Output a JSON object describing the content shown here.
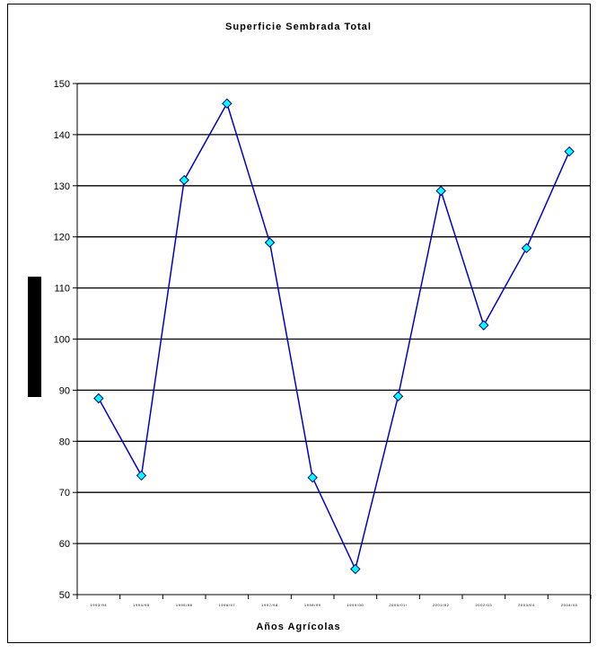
{
  "chart_data": {
    "type": "line",
    "title": "Superficie Sembrada Total",
    "xlabel": "Años Agrícolas",
    "ylabel": "",
    "categories": [
      "1993/94",
      "1994/95",
      "1995/96",
      "1996/97",
      "1997/98",
      "1998/99",
      "1999/00",
      "2000/01\\",
      "2001/02",
      "2002/03",
      "2003/04",
      "2004/05"
    ],
    "series": [
      {
        "values": [
          88.4,
          73.3,
          131.1,
          146.1,
          118.9,
          72.9,
          55.0,
          88.8,
          129.0,
          102.7,
          117.8,
          136.7
        ]
      }
    ],
    "ylim": [
      50,
      150
    ],
    "yticks": [
      50,
      60,
      70,
      80,
      90,
      100,
      110,
      120,
      130,
      140,
      150
    ],
    "grid": true,
    "legend": "none",
    "colors": {
      "line": "#0000cc",
      "marker_fill": "#00ffff",
      "marker_stroke": "#000080",
      "grid": "#000000"
    }
  }
}
